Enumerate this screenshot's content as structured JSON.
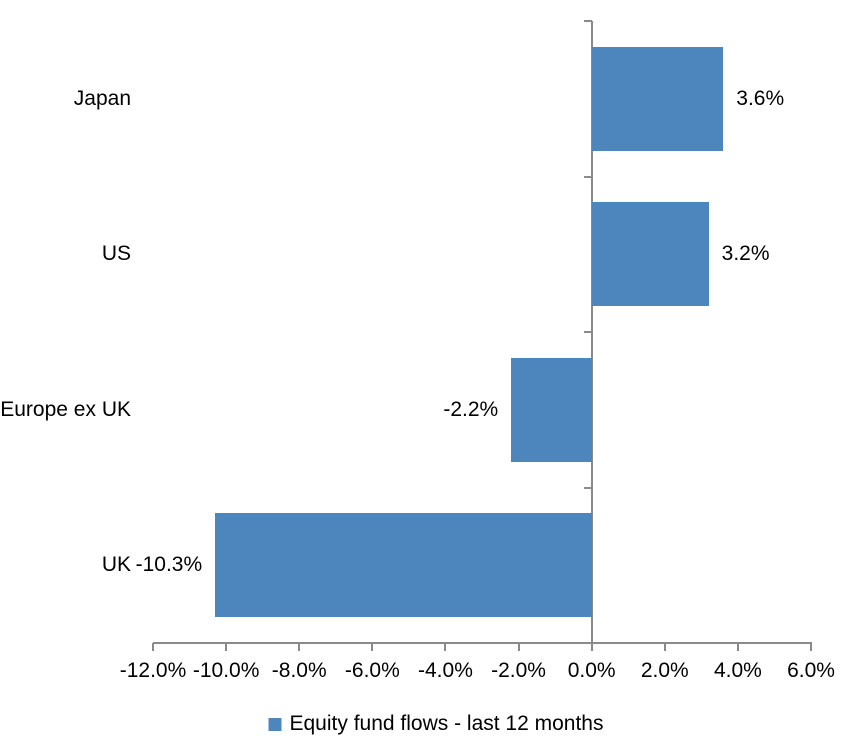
{
  "chart_data": {
    "type": "bar",
    "orientation": "horizontal",
    "title": "",
    "categories": [
      "Japan",
      "US",
      "Europe ex UK",
      "UK"
    ],
    "values": [
      3.6,
      3.2,
      -2.2,
      -10.3
    ],
    "data_labels": [
      "3.6%",
      "3.2%",
      "-2.2%",
      "-10.3%"
    ],
    "x_tick_values": [
      -12,
      -10,
      -8,
      -6,
      -4,
      -2,
      0,
      2,
      4,
      6
    ],
    "x_tick_labels": [
      "-12.0%",
      "-10.0%",
      "-8.0%",
      "-6.0%",
      "-4.0%",
      "-2.0%",
      "0.0%",
      "2.0%",
      "4.0%",
      "6.0%"
    ],
    "xlim": [
      -12,
      6
    ],
    "grid": false,
    "legend": {
      "label": "Equity fund flows - last 12 months",
      "position": "bottom"
    },
    "colors": {
      "bar": "#4C86BC",
      "axis": "#8A8A8A",
      "text": "#000000",
      "background": "#FFFFFF"
    }
  }
}
